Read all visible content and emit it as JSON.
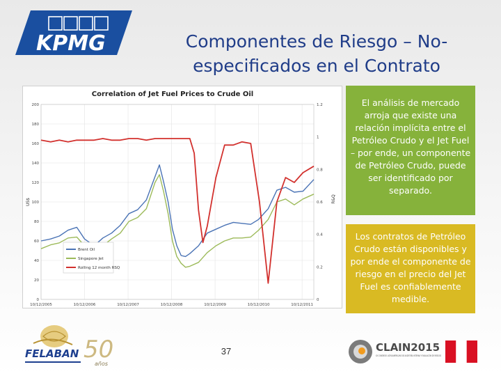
{
  "header": {
    "logo_text": "KPMG",
    "title": "Componentes de Riesgo – No-especificados en el Contrato"
  },
  "chart_data": {
    "type": "line",
    "title": "Correlation of Jet Fuel Prices to Crude Oil",
    "ylabel_left": "US$",
    "ylabel_right": "R&Q",
    "x_ticks": [
      "10/12/2005",
      "10/12/2006",
      "10/12/2007",
      "10/12/2008",
      "10/12/2009",
      "10/12/2010",
      "10/12/2011"
    ],
    "y_left_ticks": [
      "0",
      "20",
      "40",
      "60",
      "80",
      "100",
      "120",
      "140",
      "160",
      "180",
      "200"
    ],
    "y_right_ticks": [
      "0",
      "0.2",
      "0.4",
      "0.6",
      "0.8",
      "1",
      "1.2"
    ],
    "ylim_left": [
      0,
      200
    ],
    "ylim_right": [
      0,
      1.2
    ],
    "x_range": [
      2005.78,
      2012.05
    ],
    "grid": true,
    "legend_position": "bottom-left",
    "colors": {
      "brent": "#4a73b5",
      "jet": "#9cba59",
      "rsq": "#d2302d"
    },
    "series": [
      {
        "name": "Brent Oil",
        "axis": "left",
        "x": [
          2005.78,
          2006.0,
          2006.2,
          2006.4,
          2006.6,
          2006.78,
          2007.0,
          2007.2,
          2007.4,
          2007.6,
          2007.8,
          2008.0,
          2008.2,
          2008.4,
          2008.5,
          2008.6,
          2008.7,
          2008.8,
          2008.9,
          2009.0,
          2009.1,
          2009.2,
          2009.4,
          2009.6,
          2009.8,
          2010.0,
          2010.2,
          2010.4,
          2010.6,
          2010.78,
          2011.0,
          2011.2,
          2011.4,
          2011.6,
          2011.8,
          2012.05
        ],
        "values": [
          60,
          62,
          65,
          71,
          74,
          62,
          55,
          63,
          68,
          76,
          88,
          92,
          102,
          126,
          138,
          120,
          100,
          72,
          55,
          45,
          44,
          47,
          55,
          68,
          72,
          76,
          79,
          78,
          77,
          82,
          93,
          112,
          115,
          110,
          111,
          123
        ]
      },
      {
        "name": "Singapore Jet",
        "axis": "left",
        "x": [
          2005.78,
          2006.0,
          2006.2,
          2006.4,
          2006.6,
          2006.78,
          2007.0,
          2007.2,
          2007.4,
          2007.6,
          2007.8,
          2008.0,
          2008.2,
          2008.4,
          2008.5,
          2008.6,
          2008.7,
          2008.8,
          2008.9,
          2009.0,
          2009.1,
          2009.2,
          2009.4,
          2009.6,
          2009.8,
          2010.0,
          2010.2,
          2010.4,
          2010.6,
          2010.78,
          2011.0,
          2011.2,
          2011.4,
          2011.6,
          2011.8,
          2012.05
        ],
        "values": [
          52,
          56,
          58,
          63,
          64,
          55,
          48,
          55,
          62,
          68,
          80,
          84,
          93,
          120,
          128,
          110,
          88,
          60,
          44,
          37,
          33,
          34,
          38,
          48,
          55,
          60,
          63,
          63,
          64,
          71,
          82,
          100,
          103,
          97,
          103,
          108
        ]
      },
      {
        "name": "Rolling 12 month RSQ",
        "axis": "right",
        "x": [
          2005.78,
          2006.0,
          2006.2,
          2006.4,
          2006.6,
          2006.8,
          2007.0,
          2007.2,
          2007.4,
          2007.6,
          2007.8,
          2008.0,
          2008.2,
          2008.4,
          2008.6,
          2008.8,
          2009.0,
          2009.2,
          2009.3,
          2009.4,
          2009.5,
          2009.6,
          2009.8,
          2010.0,
          2010.2,
          2010.4,
          2010.6,
          2010.8,
          2011.0,
          2011.2,
          2011.4,
          2011.6,
          2011.8,
          2012.05
        ],
        "values": [
          0.98,
          0.97,
          0.98,
          0.97,
          0.98,
          0.98,
          0.98,
          0.99,
          0.98,
          0.98,
          0.99,
          0.99,
          0.98,
          0.99,
          0.99,
          0.99,
          0.99,
          0.99,
          0.9,
          0.55,
          0.35,
          0.45,
          0.75,
          0.95,
          0.95,
          0.97,
          0.96,
          0.6,
          0.1,
          0.6,
          0.75,
          0.72,
          0.78,
          0.82
        ]
      }
    ]
  },
  "text_boxes": {
    "green": "El análisis de mercado arroja que existe una relación implícita entre el Petróleo Crudo y el Jet Fuel – por ende, un componente de Petróleo Crudo, puede ser identificado por separado.",
    "yellow": "Los contratos de Petróleo Crudo están disponibles y por ende el componente de riesgo en el precio del Jet Fuel es confiablemente medible."
  },
  "footer": {
    "page_number": "37",
    "felaban_logo": "FELABAN",
    "felaban_anniversary": "50",
    "felaban_anniversary_word": "años",
    "clain_logo": "CLAIN2015",
    "clain_subtitle": "XX CONGRESO LATINOAMERICANO DE AUDITORÍA INTERNA Y EVALUACIÓN DE RIESGOS",
    "flag_colors": [
      "#d91023",
      "#ffffff",
      "#d91023"
    ]
  }
}
